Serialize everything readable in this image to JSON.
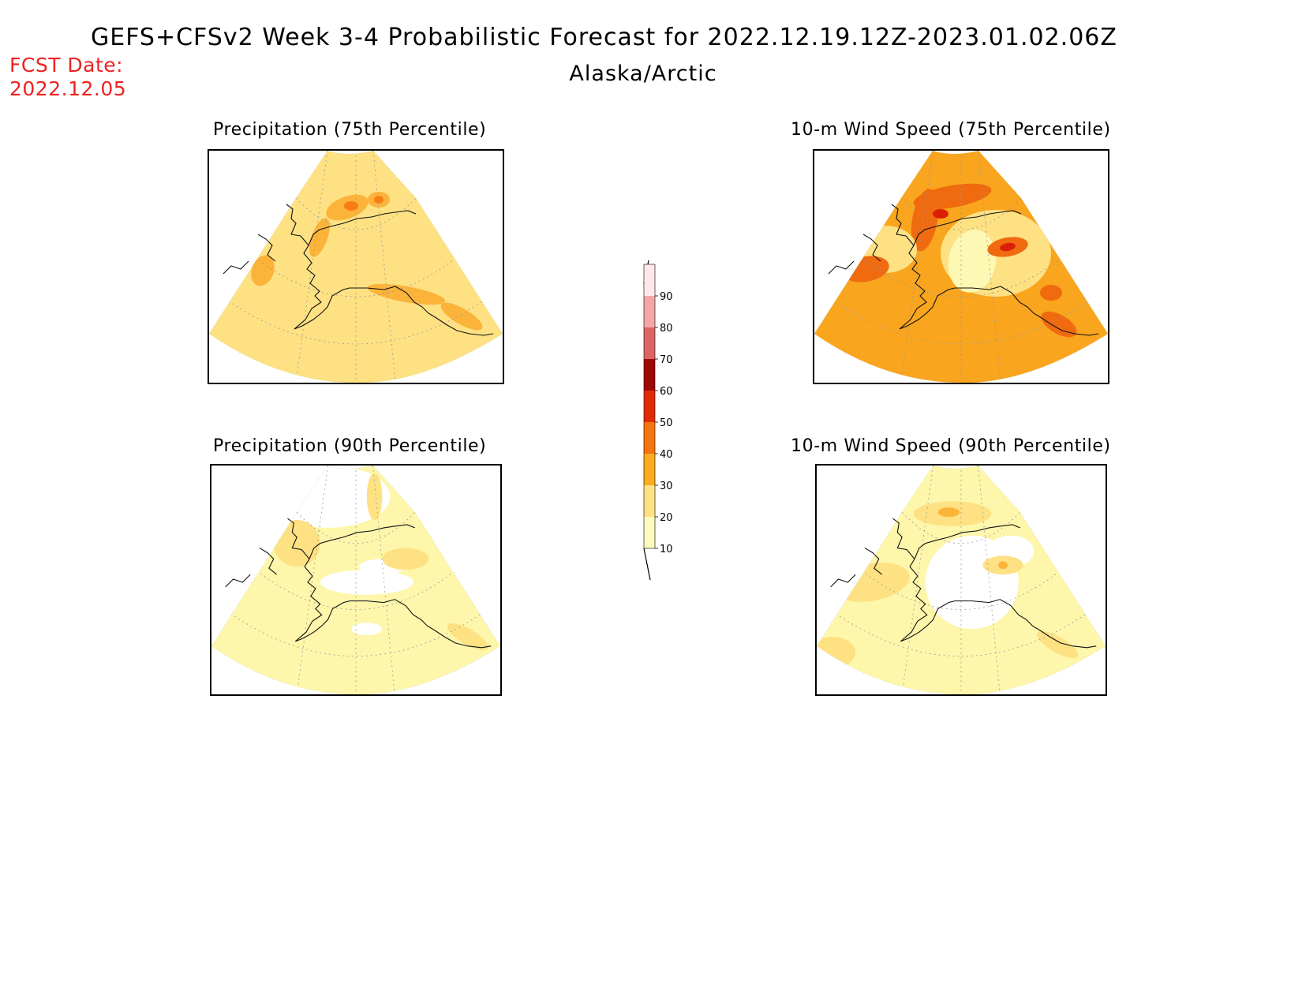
{
  "header": {
    "title": "GEFS+CFSv2 Week 3-4 Probabilistic Forecast for 2022.12.19.12Z-2023.01.02.06Z",
    "region": "Alaska/Arctic",
    "fcst_label": "FCST Date:",
    "fcst_date": "2022.12.05"
  },
  "panels": [
    {
      "id": "precip75",
      "title": "Precipitation (75th Percentile)",
      "base_color": "#fde183",
      "highlights": [
        "#fbb33a",
        "#f77d12",
        "#e22a06"
      ]
    },
    {
      "id": "wind75",
      "title": "10-m Wind Speed (75th Percentile)",
      "base_color": "#f9a51e",
      "highlights": [
        "#fde183",
        "#fdf8b4",
        "#f06a10",
        "#db1f07"
      ]
    },
    {
      "id": "precip90",
      "title": "Precipitation (90th Percentile)",
      "base_color": "#fdf6ab",
      "highlights": [
        "#fde183",
        "#ffffff"
      ]
    },
    {
      "id": "wind90",
      "title": "10-m Wind Speed (90th Percentile)",
      "base_color": "#fdf6ab",
      "highlights": [
        "#fde183",
        "#fbb33a",
        "#ffffff"
      ]
    }
  ],
  "colorbar": {
    "labels": [
      "10",
      "20",
      "30",
      "40",
      "50",
      "60",
      "70",
      "80",
      "90"
    ],
    "colors": [
      "#fdfbbf",
      "#fde183",
      "#fbab20",
      "#f6740f",
      "#e22b06",
      "#9e0904",
      "#dd6464",
      "#f4a7a7",
      "#ffe8ea"
    ]
  }
}
